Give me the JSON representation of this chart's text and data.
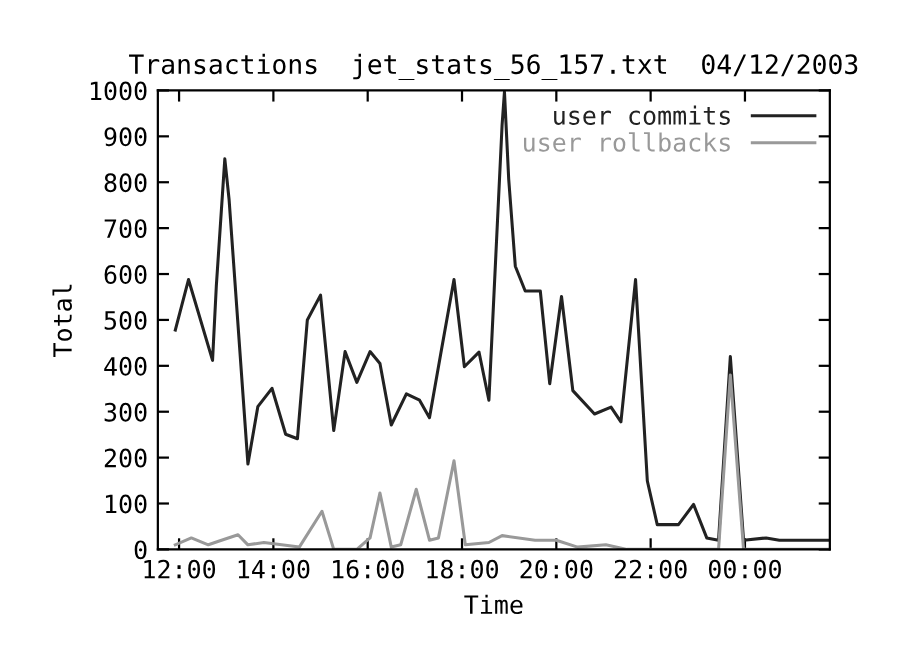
{
  "chart_data": {
    "type": "line",
    "title": "Transactions  jet_stats_56_157.txt  04/12/2003",
    "xlabel": "Time",
    "ylabel": "Total",
    "xlim": [
      11.55,
      25.8
    ],
    "ylim": [
      0,
      1000
    ],
    "xticks": [
      {
        "value": 12,
        "label": "12:00"
      },
      {
        "value": 14,
        "label": "14:00"
      },
      {
        "value": 16,
        "label": "16:00"
      },
      {
        "value": 18,
        "label": "18:00"
      },
      {
        "value": 20,
        "label": "20:00"
      },
      {
        "value": 22,
        "label": "22:00"
      },
      {
        "value": 24,
        "label": "00:00"
      }
    ],
    "yticks": [
      0,
      100,
      200,
      300,
      400,
      500,
      600,
      700,
      800,
      900,
      1000
    ],
    "grid": false,
    "legend": "top right",
    "marker": "none",
    "line_style": "solid",
    "series": [
      {
        "name": "user commits",
        "color": "#222222",
        "x": [
          11.92,
          12.2,
          12.71,
          12.79,
          12.97,
          13.06,
          13.46,
          13.67,
          13.97,
          14.26,
          14.51,
          14.72,
          15.0,
          15.28,
          15.52,
          15.77,
          16.05,
          16.26,
          16.5,
          16.82,
          17.1,
          17.31,
          17.55,
          17.83,
          18.05,
          18.36,
          18.57,
          18.85,
          18.9,
          18.99,
          19.13,
          19.34,
          19.66,
          19.86,
          20.11,
          20.35,
          20.81,
          21.16,
          21.37,
          21.68,
          21.93,
          22.14,
          22.59,
          22.91,
          23.19,
          23.44,
          23.69,
          23.97,
          24.45,
          24.73,
          25.78
        ],
        "values": [
          478,
          588,
          412,
          574,
          851,
          763,
          186,
          311,
          351,
          251,
          241,
          500,
          554,
          259,
          431,
          364,
          431,
          405,
          271,
          339,
          325,
          287,
          427,
          588,
          398,
          430,
          325,
          925,
          997,
          807,
          617,
          563,
          563,
          361,
          551,
          346,
          295,
          310,
          278,
          588,
          149,
          54,
          54,
          98,
          25,
          20,
          420,
          20,
          25,
          20,
          20
        ]
      },
      {
        "name": "user rollbacks",
        "color": "#999999",
        "x": [
          11.92,
          12.26,
          12.62,
          12.9,
          13.25,
          13.46,
          13.8,
          14.55,
          15.03,
          15.28,
          15.77,
          16.05,
          16.26,
          16.5,
          16.7,
          17.03,
          17.31,
          17.5,
          17.83,
          18.07,
          18.57,
          18.85,
          19.55,
          20.0,
          20.45,
          21.05,
          21.5,
          23.44,
          23.69,
          23.97,
          25.78
        ],
        "values": [
          10,
          25,
          10,
          20,
          32,
          10,
          15,
          5,
          83,
          0,
          0,
          25,
          123,
          5,
          10,
          131,
          20,
          25,
          193,
          10,
          15,
          30,
          20,
          20,
          5,
          10,
          0,
          0,
          380,
          0,
          0
        ]
      }
    ]
  }
}
